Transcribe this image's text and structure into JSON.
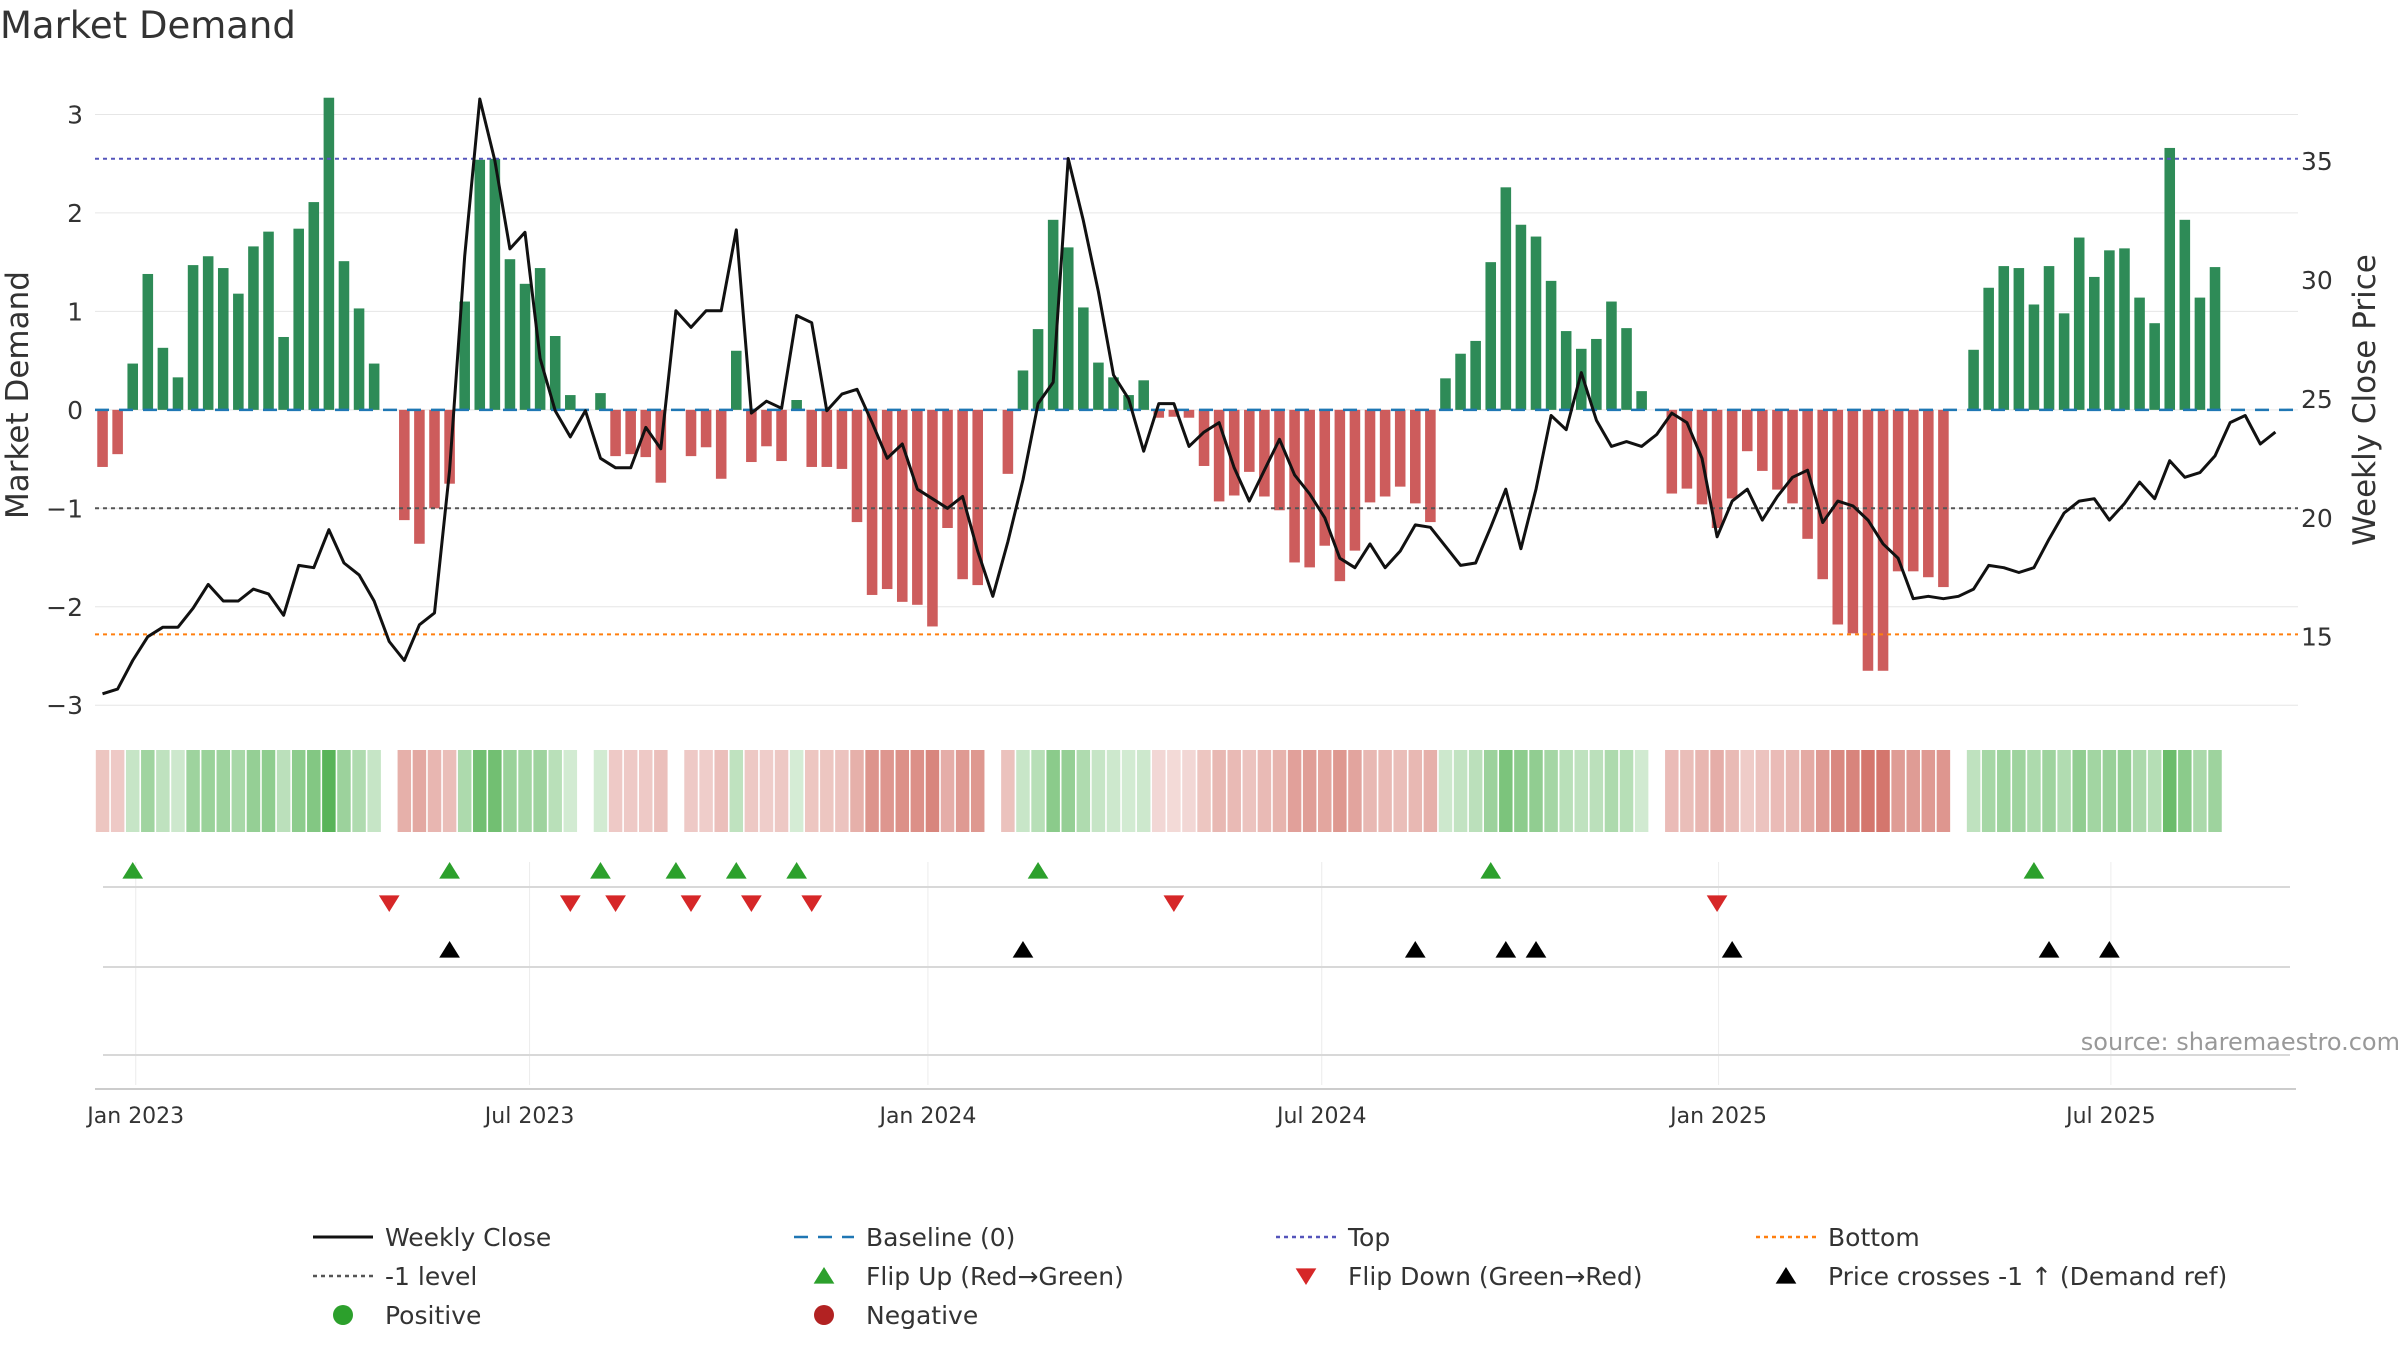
{
  "title": "Market Demand",
  "source": "source: sharemaestro.com",
  "colors": {
    "positive": "#2e8b57",
    "negative": "#cd5c5c",
    "price": "#111111",
    "baseline": "#1f77b4",
    "top": "#5555bb",
    "bottom": "#ff7f0e",
    "minus_one": "#555555",
    "flip_up": "#2ca02c",
    "flip_down": "#d62728",
    "cross": "#000000",
    "legend_positive": "#2ca02c",
    "legend_negative": "#b22222"
  },
  "chart_data": {
    "type": "bar+line",
    "title": "Market Demand",
    "ylabel_left": "Market Demand",
    "ylabel_right": "Weekly Close Price",
    "left_ylim": [
      -3.15,
      3.35
    ],
    "right_ylim": [
      11.5,
      38.4
    ],
    "left_ticks": [
      3,
      2,
      1,
      0,
      -1,
      -2,
      -3
    ],
    "left_tick_labels": [
      "3",
      "2",
      "1",
      "0",
      "−1",
      "−2",
      "−3"
    ],
    "right_ticks": [
      35,
      30,
      25,
      20,
      15
    ],
    "right_tick_labels": [
      "35",
      "30",
      "25",
      "20",
      "15"
    ],
    "x_start": "2022-12-19",
    "week_count": 146,
    "x_ticks": [
      {
        "label": "Jan 2023",
        "week": 2.2
      },
      {
        "label": "Jul 2023",
        "week": 28.3
      },
      {
        "label": "Jan 2024",
        "week": 54.7
      },
      {
        "label": "Jul 2024",
        "week": 80.8
      },
      {
        "label": "Jan 2025",
        "week": 107.1
      },
      {
        "label": "Jul 2025",
        "week": 133.1
      }
    ],
    "reference_lines": {
      "top": 2.55,
      "bottom": -2.28,
      "minus_one": -1.0,
      "baseline": 0
    },
    "demand": [
      -0.58,
      -0.45,
      0.47,
      1.38,
      0.63,
      0.33,
      1.47,
      1.56,
      1.44,
      1.18,
      1.66,
      1.81,
      0.74,
      1.84,
      2.11,
      3.17,
      1.51,
      1.03,
      0.47,
      0.0,
      -1.12,
      -1.36,
      -1.0,
      -0.75,
      1.1,
      2.54,
      2.55,
      1.53,
      1.28,
      1.44,
      0.75,
      0.15,
      0.0,
      0.17,
      -0.47,
      -0.45,
      -0.48,
      -0.74,
      0.0,
      -0.47,
      -0.38,
      -0.7,
      0.6,
      -0.53,
      -0.37,
      -0.52,
      0.1,
      -0.58,
      -0.58,
      -0.6,
      -1.14,
      -1.88,
      -1.82,
      -1.95,
      -1.98,
      -2.2,
      -1.2,
      -1.72,
      -1.78,
      0.0,
      -0.65,
      0.4,
      0.82,
      1.93,
      1.65,
      1.04,
      0.48,
      0.33,
      0.15,
      0.3,
      -0.08,
      -0.07,
      -0.08,
      -0.57,
      -0.93,
      -0.87,
      -0.63,
      -0.88,
      -1.02,
      -1.55,
      -1.6,
      -1.38,
      -1.74,
      -1.43,
      -0.94,
      -0.88,
      -0.78,
      -0.95,
      -1.14,
      0.32,
      0.57,
      0.7,
      1.5,
      2.26,
      1.88,
      1.76,
      1.31,
      0.8,
      0.62,
      0.72,
      1.1,
      0.83,
      0.19,
      0.0,
      -0.85,
      -0.8,
      -0.96,
      -1.2,
      -0.9,
      -0.42,
      -0.62,
      -0.81,
      -0.95,
      -1.31,
      -1.72,
      -2.18,
      -2.27,
      -2.65,
      -2.65,
      -1.64,
      -1.64,
      -1.7,
      -1.8,
      0.0,
      0.61,
      1.24,
      1.46,
      1.44,
      1.07,
      1.46,
      0.98,
      1.75,
      1.35,
      1.62,
      1.64,
      1.14,
      0.88,
      2.66,
      1.93,
      1.14,
      1.45
    ],
    "price": [
      12.6,
      12.8,
      14.0,
      15.0,
      15.4,
      15.4,
      16.2,
      17.2,
      16.5,
      16.5,
      17.0,
      16.8,
      15.9,
      18.0,
      17.9,
      19.5,
      18.1,
      17.6,
      16.5,
      14.8,
      14.0,
      15.5,
      16.0,
      22.0,
      31.0,
      37.6,
      35.0,
      31.3,
      32.0,
      26.7,
      24.5,
      23.4,
      24.5,
      22.5,
      22.1,
      22.1,
      23.8,
      22.9,
      28.7,
      28.0,
      28.7,
      28.7,
      32.1,
      24.4,
      24.9,
      24.6,
      28.5,
      28.2,
      24.5,
      25.2,
      25.4,
      24.0,
      22.5,
      23.1,
      21.2,
      20.8,
      20.4,
      20.9,
      18.6,
      16.7,
      19.0,
      21.6,
      24.8,
      25.7,
      35.1,
      32.5,
      29.5,
      26.0,
      25.0,
      22.8,
      24.8,
      24.8,
      23.0,
      23.6,
      24.0,
      22.1,
      20.7,
      22.0,
      23.3,
      21.8,
      21.0,
      20.0,
      18.3,
      17.9,
      18.9,
      17.9,
      18.6,
      19.7,
      19.6,
      18.8,
      18.0,
      18.1,
      19.6,
      21.2,
      18.7,
      21.2,
      24.3,
      23.7,
      26.1,
      24.1,
      23.0,
      23.2,
      23.0,
      23.5,
      24.4,
      24.0,
      22.5,
      19.2,
      20.7,
      21.2,
      19.9,
      20.9,
      21.7,
      22.0,
      19.8,
      20.7,
      20.5,
      19.9,
      18.9,
      18.3,
      16.6,
      16.7,
      16.6,
      16.7,
      17.0,
      18.0,
      17.9,
      17.7,
      17.9,
      19.1,
      20.2,
      20.7,
      20.8,
      19.9,
      20.6,
      21.5,
      20.8,
      22.4,
      21.7,
      21.9,
      22.6,
      24.0,
      24.3,
      23.1,
      23.6
    ],
    "flip_up_weeks": [
      2,
      23,
      33,
      38,
      42,
      46,
      62,
      92,
      128
    ],
    "flip_down_weeks": [
      19,
      31,
      34,
      39,
      43,
      47,
      71,
      107
    ],
    "price_cross_weeks": [
      23,
      61,
      87,
      93,
      95,
      108,
      129,
      133
    ]
  },
  "legend": [
    {
      "label": "Weekly Close",
      "symbol": "line",
      "color": "#111111"
    },
    {
      "label": "Baseline (0)",
      "symbol": "dash",
      "color": "#1f77b4"
    },
    {
      "label": "Top",
      "symbol": "dot",
      "color": "#5555bb"
    },
    {
      "label": "Bottom",
      "symbol": "dot",
      "color": "#ff7f0e"
    },
    {
      "label": "-1 level",
      "symbol": "dot",
      "color": "#555555"
    },
    {
      "label": "Flip Up (Red→Green)",
      "symbol": "triangle-up",
      "color": "#2ca02c"
    },
    {
      "label": "Flip Down (Green→Red)",
      "symbol": "triangle-down",
      "color": "#d62728"
    },
    {
      "label": "Price crosses -1 ↑ (Demand ref)",
      "symbol": "triangle-up",
      "color": "#000000"
    },
    {
      "label": "Positive",
      "symbol": "circle",
      "color": "#2ca02c"
    },
    {
      "label": "Negative",
      "symbol": "circle",
      "color": "#b22222"
    }
  ]
}
